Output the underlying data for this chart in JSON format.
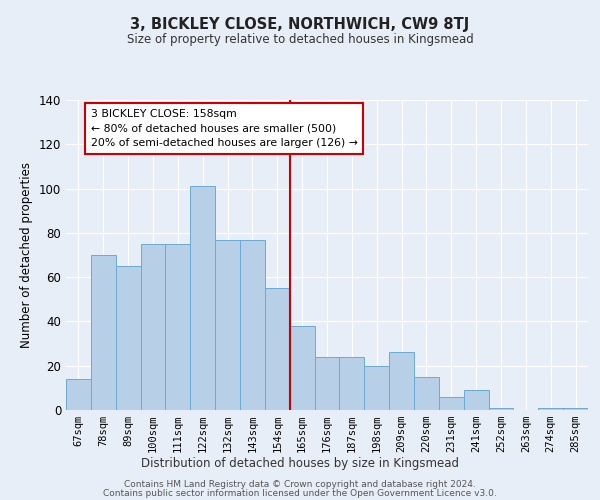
{
  "title": "3, BICKLEY CLOSE, NORTHWICH, CW9 8TJ",
  "subtitle": "Size of property relative to detached houses in Kingsmead",
  "xlabel": "Distribution of detached houses by size in Kingsmead",
  "ylabel": "Number of detached properties",
  "bar_labels": [
    "67sqm",
    "78sqm",
    "89sqm",
    "100sqm",
    "111sqm",
    "122sqm",
    "132sqm",
    "143sqm",
    "154sqm",
    "165sqm",
    "176sqm",
    "187sqm",
    "198sqm",
    "209sqm",
    "220sqm",
    "231sqm",
    "241sqm",
    "252sqm",
    "263sqm",
    "274sqm",
    "285sqm"
  ],
  "bar_values": [
    14,
    70,
    65,
    75,
    75,
    101,
    77,
    77,
    55,
    38,
    24,
    24,
    20,
    26,
    15,
    6,
    9,
    1,
    0,
    1,
    1
  ],
  "bar_color": "#b8cfe8",
  "bar_edgecolor": "#6aaad4",
  "vline_x_index": 8,
  "vline_color": "#cc0000",
  "annotation_text": "3 BICKLEY CLOSE: 158sqm\n← 80% of detached houses are smaller (500)\n20% of semi-detached houses are larger (126) →",
  "annotation_box_edgecolor": "#cc0000",
  "annotation_box_facecolor": "#ffffff",
  "ylim": [
    0,
    140
  ],
  "yticks": [
    0,
    20,
    40,
    60,
    80,
    100,
    120,
    140
  ],
  "background_color": "#e8eef8",
  "grid_color": "#ffffff",
  "footer_line1": "Contains HM Land Registry data © Crown copyright and database right 2024.",
  "footer_line2": "Contains public sector information licensed under the Open Government Licence v3.0."
}
